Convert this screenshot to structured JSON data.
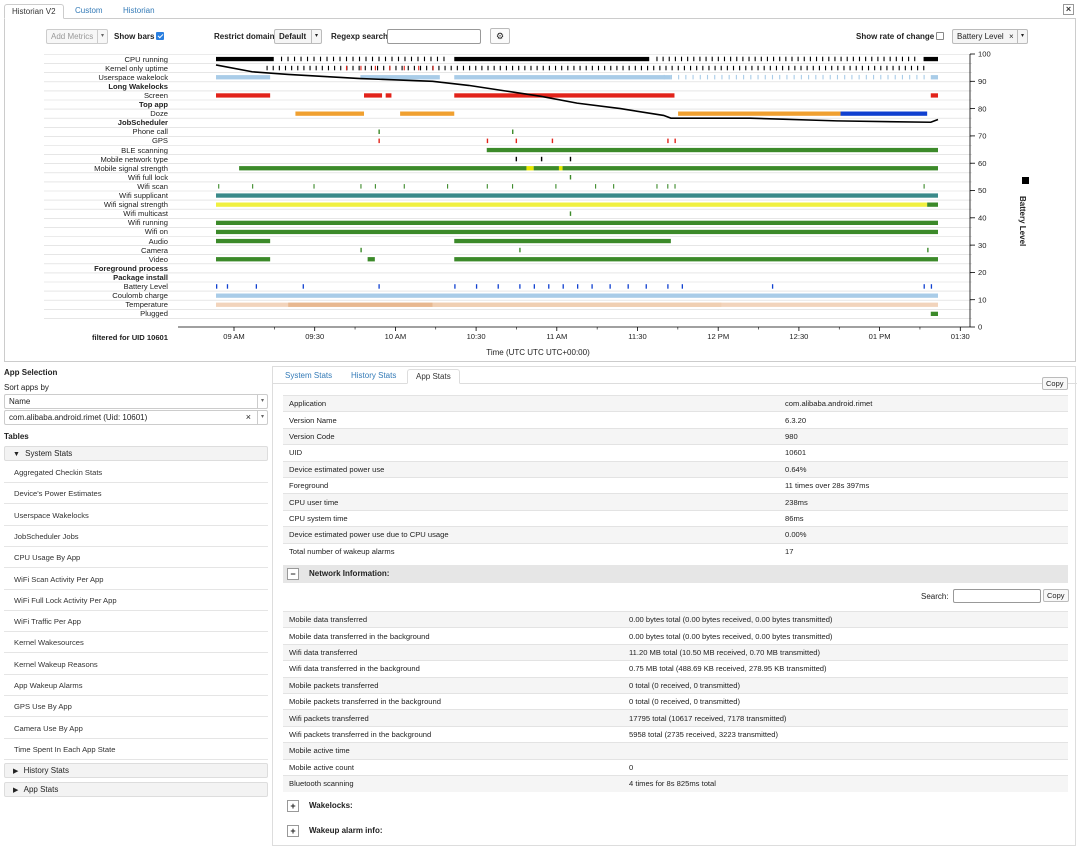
{
  "tabs": [
    "Historian V2",
    "Custom",
    "Historian"
  ],
  "close_icon": "×",
  "controls": {
    "add_metrics": "Add Metrics",
    "show_bars": "Show bars",
    "restrict_domain": "Restrict domain",
    "domain_value": "Default",
    "regexp_search": "Regexp search",
    "show_rate": "Show rate of change",
    "metric_tag": "Battery Level",
    "metric_tag_x": "×"
  },
  "chart_rows": [
    {
      "label": "CPU running",
      "bold": false
    },
    {
      "label": "Kernel only uptime",
      "bold": false
    },
    {
      "label": "Userspace wakelock",
      "bold": false
    },
    {
      "label": "Long Wakelocks",
      "bold": true
    },
    {
      "label": "Screen",
      "bold": false
    },
    {
      "label": "Top app",
      "bold": true
    },
    {
      "label": "Doze",
      "bold": false
    },
    {
      "label": "JobScheduler",
      "bold": true
    },
    {
      "label": "Phone call",
      "bold": false
    },
    {
      "label": "GPS",
      "bold": false
    },
    {
      "label": "BLE scanning",
      "bold": false
    },
    {
      "label": "Mobile network type",
      "bold": false
    },
    {
      "label": "Mobile signal strength",
      "bold": false
    },
    {
      "label": "Wifi full lock",
      "bold": false
    },
    {
      "label": "Wifi scan",
      "bold": false
    },
    {
      "label": "Wifi supplicant",
      "bold": false
    },
    {
      "label": "Wifi signal strength",
      "bold": false
    },
    {
      "label": "Wifi multicast",
      "bold": false
    },
    {
      "label": "Wifi running",
      "bold": false
    },
    {
      "label": "Wifi on",
      "bold": false
    },
    {
      "label": "Audio",
      "bold": false
    },
    {
      "label": "Camera",
      "bold": false
    },
    {
      "label": "Video",
      "bold": false
    },
    {
      "label": "Foreground process",
      "bold": true
    },
    {
      "label": "Package install",
      "bold": true
    },
    {
      "label": "Battery Level",
      "bold": false
    },
    {
      "label": "Coulomb charge",
      "bold": false
    },
    {
      "label": "Temperature",
      "bold": false
    },
    {
      "label": "Plugged",
      "bold": false
    }
  ],
  "filter_label": "filtered for UID 10601",
  "chart_data": {
    "type": "line",
    "x_ticks": [
      "09 AM",
      "09:30",
      "10 AM",
      "10:30",
      "11 AM",
      "11:30",
      "12 PM",
      "12:30",
      "01 PM",
      "01:30"
    ],
    "xlabel": "Time (UTC UTC UTC+00:00)",
    "y2_ticks": [
      "0",
      "10",
      "20",
      "30",
      "40",
      "50",
      "60",
      "70",
      "80",
      "90",
      "100"
    ],
    "y2label": "Battery Level",
    "legend": "Battery Level",
    "series": [
      {
        "name": "Battery Level",
        "points": [
          [
            0.0,
            96
          ],
          [
            0.05,
            93.5
          ],
          [
            0.1,
            92.5
          ],
          [
            0.2,
            91
          ],
          [
            0.3,
            90
          ],
          [
            0.35,
            88.5
          ],
          [
            0.4,
            86.5
          ],
          [
            0.45,
            84.5
          ],
          [
            0.5,
            82
          ],
          [
            0.56,
            80
          ],
          [
            0.62,
            77.5
          ],
          [
            0.63,
            76.5
          ],
          [
            0.74,
            76.5
          ],
          [
            0.86,
            75.5
          ],
          [
            0.99,
            75
          ],
          [
            1.0,
            76
          ]
        ]
      }
    ]
  },
  "app_selection": {
    "title": "App Selection",
    "sort_label": "Sort apps by",
    "sort_value": "Name",
    "app_value": "com.alibaba.android.rimet (Uid: 10601)",
    "tables_label": "Tables",
    "system_stats_label": "System Stats",
    "system_stats_items": [
      "Aggregated Checkin Stats",
      "Device's Power Estimates",
      "Userspace Wakelocks",
      "JobScheduler Jobs",
      "CPU Usage By App",
      "WiFi Scan Activity Per App",
      "WiFi Full Lock Activity Per App",
      "WiFi Traffic Per App",
      "Kernel Wakesources",
      "Kernel Wakeup Reasons",
      "App Wakeup Alarms",
      "GPS Use By App",
      "Camera Use By App",
      "Time Spent In Each App State"
    ],
    "history_stats_label": "History Stats",
    "app_stats_label": "App Stats"
  },
  "right_panel": {
    "tabs": [
      "System Stats",
      "History Stats",
      "App Stats"
    ],
    "copy_label": "Copy",
    "app_table": [
      [
        "Application",
        "com.alibaba.android.rimet"
      ],
      [
        "Version Name",
        "6.3.20"
      ],
      [
        "Version Code",
        "980"
      ],
      [
        "UID",
        "10601"
      ],
      [
        "Device estimated power use",
        "0.64%"
      ],
      [
        "Foreground",
        "11 times over 28s 397ms"
      ],
      [
        "CPU user time",
        "238ms"
      ],
      [
        "CPU system time",
        "86ms"
      ],
      [
        "Device estimated power use due to CPU usage",
        "0.00%"
      ],
      [
        "Total number of wakeup alarms",
        "17"
      ]
    ],
    "network_title": "Network Information:",
    "search_label": "Search:",
    "network_table": [
      [
        "Mobile data transferred",
        "0.00 bytes total (0.00 bytes received, 0.00 bytes transmitted)"
      ],
      [
        "Mobile data transferred in the background",
        "0.00 bytes total (0.00 bytes received, 0.00 bytes transmitted)"
      ],
      [
        "Wifi data transferred",
        "11.20 MB total (10.50 MB received, 0.70 MB transmitted)"
      ],
      [
        "Wifi data transferred in the background",
        "0.75 MB total (488.69 KB received, 278.95 KB transmitted)"
      ],
      [
        "Mobile packets transferred",
        "0 total (0 received, 0 transmitted)"
      ],
      [
        "Mobile packets transferred in the background",
        "0 total (0 received, 0 transmitted)"
      ],
      [
        "Wifi packets transferred",
        "17795 total (10617 received, 7178 transmitted)"
      ],
      [
        "Wifi packets transferred in the background",
        "5958 total (2735 received, 3223 transmitted)"
      ],
      [
        "Mobile active time",
        ""
      ],
      [
        "Mobile active count",
        "0"
      ],
      [
        "Bluetooth scanning",
        "4 times for 8s 825ms total"
      ]
    ],
    "wakelocks_title": "Wakelocks:",
    "wakeup_title": "Wakeup alarm info:",
    "minus": "−",
    "plus": "+"
  }
}
